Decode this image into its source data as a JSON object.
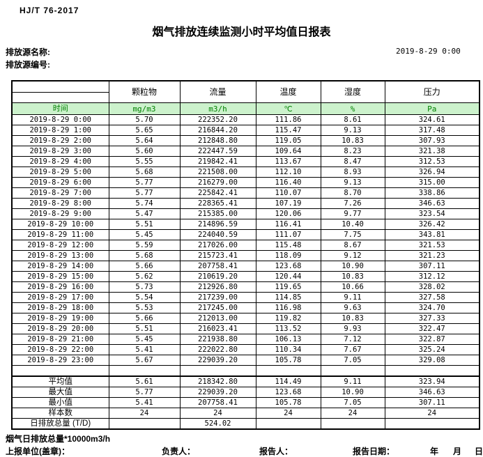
{
  "header": {
    "standard_no": "HJ/T 76-2017",
    "title": "烟气排放连续监测小时平均值日报表",
    "source_name_label": "排放源名称:",
    "source_code_label": "排放源编号:",
    "datetime": "2019-8-29 0:00"
  },
  "colors": {
    "unit_row_bg": "#ccf2cc",
    "unit_row_text": "#008000",
    "border": "#000000"
  },
  "table": {
    "time_header": "时间",
    "columns": [
      "颗粒物",
      "流量",
      "温度",
      "湿度",
      "压力"
    ],
    "units": [
      "mg/m3",
      "m3/h",
      "℃",
      "%",
      "Pa"
    ],
    "rows": [
      {
        "time": "2019-8-29 0:00",
        "values": [
          "5.70",
          "222352.20",
          "111.86",
          "8.61",
          "324.61"
        ]
      },
      {
        "time": "2019-8-29 1:00",
        "values": [
          "5.65",
          "216844.20",
          "115.47",
          "9.13",
          "317.48"
        ]
      },
      {
        "time": "2019-8-29 2:00",
        "values": [
          "5.64",
          "212848.80",
          "119.05",
          "10.83",
          "307.93"
        ]
      },
      {
        "time": "2019-8-29 3:00",
        "values": [
          "5.60",
          "222447.59",
          "109.64",
          "8.23",
          "321.38"
        ]
      },
      {
        "time": "2019-8-29 4:00",
        "values": [
          "5.55",
          "219842.41",
          "113.67",
          "8.47",
          "312.53"
        ]
      },
      {
        "time": "2019-8-29 5:00",
        "values": [
          "5.68",
          "221508.00",
          "112.10",
          "8.93",
          "326.94"
        ]
      },
      {
        "time": "2019-8-29 6:00",
        "values": [
          "5.77",
          "216279.00",
          "116.40",
          "9.13",
          "315.00"
        ]
      },
      {
        "time": "2019-8-29 7:00",
        "values": [
          "5.77",
          "225842.41",
          "110.07",
          "8.70",
          "338.86"
        ]
      },
      {
        "time": "2019-8-29 8:00",
        "values": [
          "5.74",
          "228365.41",
          "107.19",
          "7.26",
          "346.63"
        ]
      },
      {
        "time": "2019-8-29 9:00",
        "values": [
          "5.47",
          "215385.00",
          "120.06",
          "9.77",
          "323.54"
        ]
      },
      {
        "time": "2019-8-29 10:00",
        "values": [
          "5.51",
          "214896.59",
          "116.41",
          "10.40",
          "326.42"
        ]
      },
      {
        "time": "2019-8-29 11:00",
        "values": [
          "5.45",
          "224040.59",
          "111.07",
          "7.75",
          "343.81"
        ]
      },
      {
        "time": "2019-8-29 12:00",
        "values": [
          "5.59",
          "217026.00",
          "115.48",
          "8.67",
          "321.53"
        ]
      },
      {
        "time": "2019-8-29 13:00",
        "values": [
          "5.68",
          "215723.41",
          "118.09",
          "9.12",
          "321.23"
        ]
      },
      {
        "time": "2019-8-29 14:00",
        "values": [
          "5.66",
          "207758.41",
          "123.68",
          "10.90",
          "307.11"
        ]
      },
      {
        "time": "2019-8-29 15:00",
        "values": [
          "5.62",
          "210619.20",
          "120.44",
          "10.83",
          "312.12"
        ]
      },
      {
        "time": "2019-8-29 16:00",
        "values": [
          "5.73",
          "212926.80",
          "119.65",
          "10.66",
          "328.02"
        ]
      },
      {
        "time": "2019-8-29 17:00",
        "values": [
          "5.54",
          "217239.00",
          "114.85",
          "9.11",
          "327.58"
        ]
      },
      {
        "time": "2019-8-29 18:00",
        "values": [
          "5.53",
          "217245.00",
          "116.98",
          "9.63",
          "324.70"
        ]
      },
      {
        "time": "2019-8-29 19:00",
        "values": [
          "5.66",
          "212013.00",
          "119.82",
          "10.83",
          "327.33"
        ]
      },
      {
        "time": "2019-8-29 20:00",
        "values": [
          "5.51",
          "216023.41",
          "113.52",
          "9.93",
          "322.47"
        ]
      },
      {
        "time": "2019-8-29 21:00",
        "values": [
          "5.45",
          "221938.80",
          "106.13",
          "7.12",
          "322.87"
        ]
      },
      {
        "time": "2019-8-29 22:00",
        "values": [
          "5.41",
          "222022.80",
          "110.34",
          "7.67",
          "325.24"
        ]
      },
      {
        "time": "2019-8-29 23:00",
        "values": [
          "5.67",
          "229039.20",
          "105.78",
          "7.05",
          "329.08"
        ]
      }
    ],
    "summary": [
      {
        "label": "平均值",
        "values": [
          "5.61",
          "218342.80",
          "114.49",
          "9.11",
          "323.94"
        ]
      },
      {
        "label": "最大值",
        "values": [
          "5.77",
          "229039.20",
          "123.68",
          "10.90",
          "346.63"
        ]
      },
      {
        "label": "最小值",
        "values": [
          "5.41",
          "207758.41",
          "105.78",
          "7.05",
          "307.11"
        ]
      },
      {
        "label": "样本数",
        "values": [
          "24",
          "24",
          "24",
          "24",
          "24"
        ]
      },
      {
        "label": "日排放总量 (T/D)",
        "values": [
          "",
          "524.02",
          "",
          "",
          ""
        ]
      }
    ]
  },
  "footer": {
    "note": "烟气日排放总量*10000m3/h",
    "report_unit_label": "上报单位(盖章)：",
    "responsible_label": "负责人：",
    "reporter_label": "报告人：",
    "report_date_label": "报告日期：",
    "year_label": "年",
    "month_label": "月",
    "day_label": "日"
  }
}
